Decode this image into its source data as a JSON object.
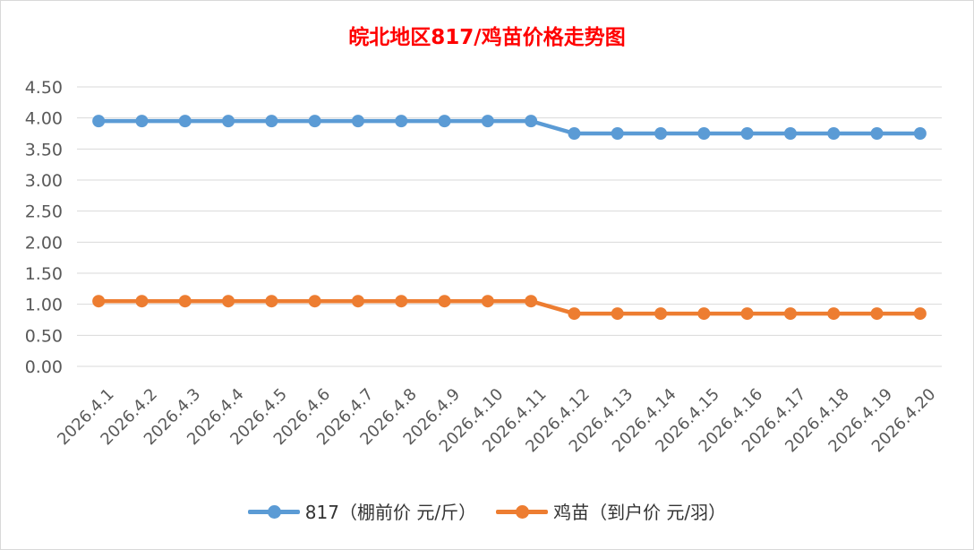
{
  "chart_data": {
    "type": "line",
    "title": "皖北地区817/鸡苗价格走势图",
    "categories": [
      "2026.4.1",
      "2026.4.2",
      "2026.4.3",
      "2026.4.4",
      "2026.4.5",
      "2026.4.6",
      "2026.4.7",
      "2026.4.8",
      "2026.4.9",
      "2026.4.10",
      "2026.4.11",
      "2026.4.12",
      "2026.4.13",
      "2026.4.14",
      "2026.4.15",
      "2026.4.16",
      "2026.4.17",
      "2026.4.18",
      "2026.4.19",
      "2026.4.20"
    ],
    "series": [
      {
        "name": "817（棚前价 元/斤）",
        "color": "#5b9bd5",
        "values": [
          3.95,
          3.95,
          3.95,
          3.95,
          3.95,
          3.95,
          3.95,
          3.95,
          3.95,
          3.95,
          3.95,
          3.75,
          3.75,
          3.75,
          3.75,
          3.75,
          3.75,
          3.75,
          3.75,
          3.75
        ]
      },
      {
        "name": "鸡苗（到户价 元/羽）",
        "color": "#ed7d31",
        "values": [
          1.05,
          1.05,
          1.05,
          1.05,
          1.05,
          1.05,
          1.05,
          1.05,
          1.05,
          1.05,
          1.05,
          0.85,
          0.85,
          0.85,
          0.85,
          0.85,
          0.85,
          0.85,
          0.85,
          0.85
        ]
      }
    ],
    "y_ticks": [
      "0.00",
      "0.50",
      "1.00",
      "1.50",
      "2.00",
      "2.50",
      "3.00",
      "3.50",
      "4.00",
      "4.50"
    ],
    "ylim": [
      0,
      4.5
    ],
    "xlabel": "",
    "ylabel": "",
    "grid": true,
    "legend_position": "bottom",
    "title_color": "#ff0000"
  }
}
